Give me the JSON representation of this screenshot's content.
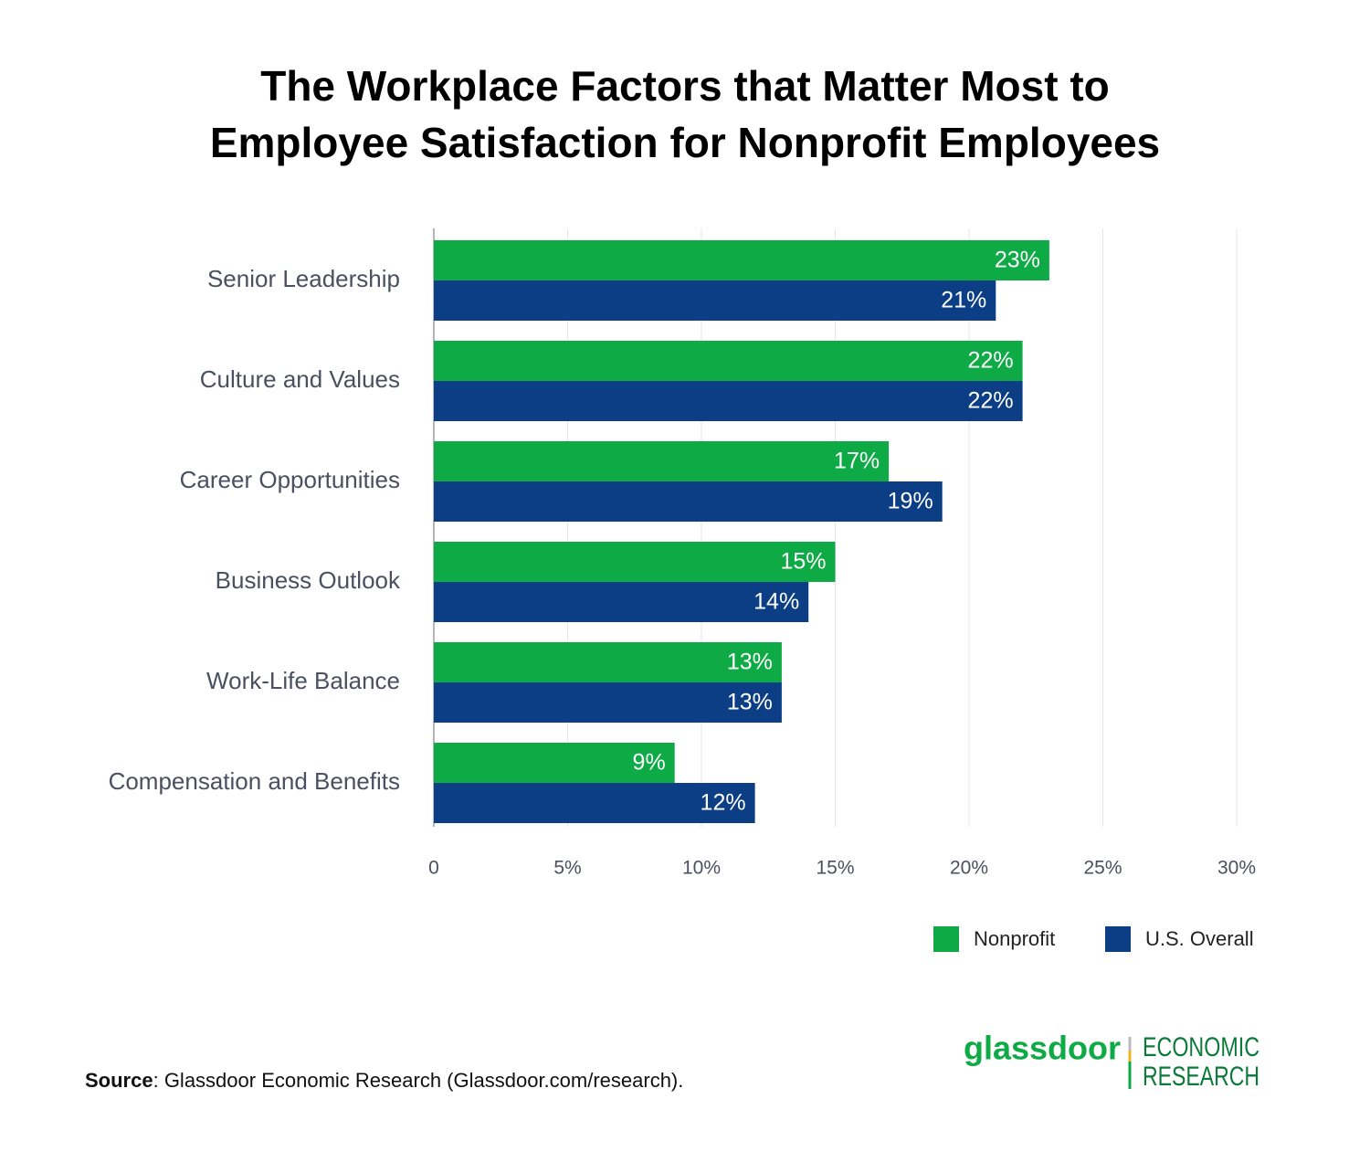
{
  "chart_data": {
    "type": "hbar",
    "title": [
      "The Workplace Factors that Matter Most to",
      "Employee Satisfaction for Nonprofit Employees"
    ],
    "categories": [
      "Senior Leadership",
      "Culture and Values",
      "Career Opportunities",
      "Business Outlook",
      "Work-Life Balance",
      "Compensation and Benefits"
    ],
    "series": [
      {
        "name": "Nonprofit",
        "color": "#0eaa45",
        "values": [
          23,
          22,
          17,
          15,
          13,
          9
        ],
        "value_labels": [
          "23%",
          "22%",
          "17%",
          "15%",
          "13%",
          "9%"
        ]
      },
      {
        "name": "U.S. Overall",
        "color": "#0c3e86",
        "values": [
          21,
          22,
          19,
          14,
          13,
          12
        ],
        "value_labels": [
          "21%",
          "22%",
          "19%",
          "14%",
          "13%",
          "12%"
        ]
      }
    ],
    "xlim": [
      0,
      30
    ],
    "xticks": [
      0,
      {
        "value": 5,
        "label": "5%"
      },
      {
        "value": 10,
        "label": "10%"
      },
      {
        "value": 15,
        "label": "15%"
      },
      {
        "value": 20,
        "label": "20%"
      },
      {
        "value": 25,
        "label": "25%"
      },
      {
        "value": 30,
        "label": "30%"
      }
    ],
    "grid": true,
    "legend": "bottom-right"
  },
  "source": {
    "label": "Source",
    "text": ": Glassdoor Economic Research (Glassdoor.com/research)."
  },
  "logo": {
    "brand": "glassdoor",
    "line1": "ECONOMIC",
    "line2": "RESEARCH"
  }
}
